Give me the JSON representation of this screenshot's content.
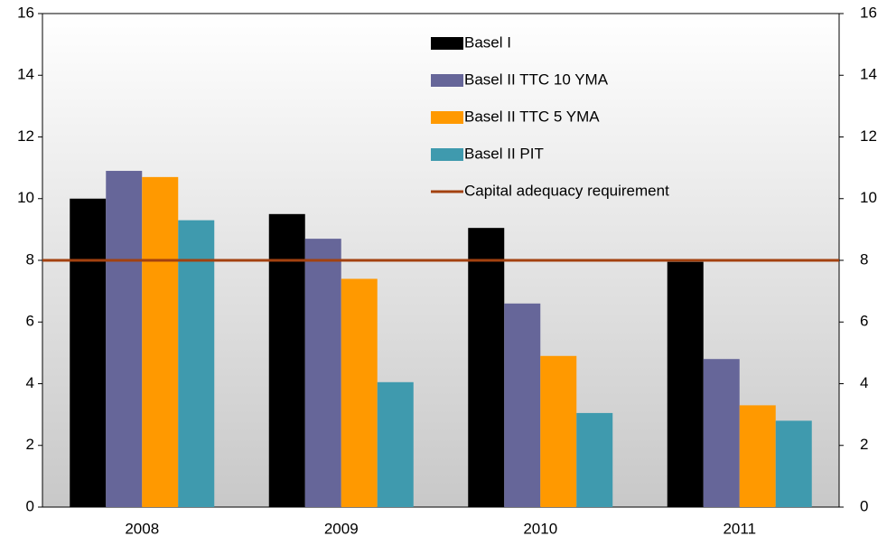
{
  "chart_data": {
    "type": "bar",
    "categories": [
      "2008",
      "2009",
      "2010",
      "2011"
    ],
    "series": [
      {
        "name": "Basel I",
        "color": "#000000",
        "values": [
          10.0,
          9.5,
          9.05,
          7.95
        ]
      },
      {
        "name": "Basel II TTC 10 YMA",
        "color": "#666699",
        "values": [
          10.9,
          8.7,
          6.6,
          4.8
        ]
      },
      {
        "name": "Basel II TTC 5 YMA",
        "color": "#ff9900",
        "values": [
          10.7,
          7.4,
          4.9,
          3.3
        ]
      },
      {
        "name": "Basel II PIT",
        "color": "#3f9aae",
        "values": [
          9.3,
          4.05,
          3.05,
          2.8
        ]
      }
    ],
    "reference_line": {
      "name": "Capital adequacy requirement",
      "value": 8,
      "color": "#a3410f"
    },
    "ylim": [
      0,
      16
    ],
    "yticks": [
      0,
      2,
      4,
      6,
      8,
      10,
      12,
      14,
      16
    ],
    "y2lim": [
      0,
      16
    ],
    "y2ticks": [
      0,
      2,
      4,
      6,
      8,
      10,
      12,
      14,
      16
    ],
    "legend": "top-right"
  }
}
